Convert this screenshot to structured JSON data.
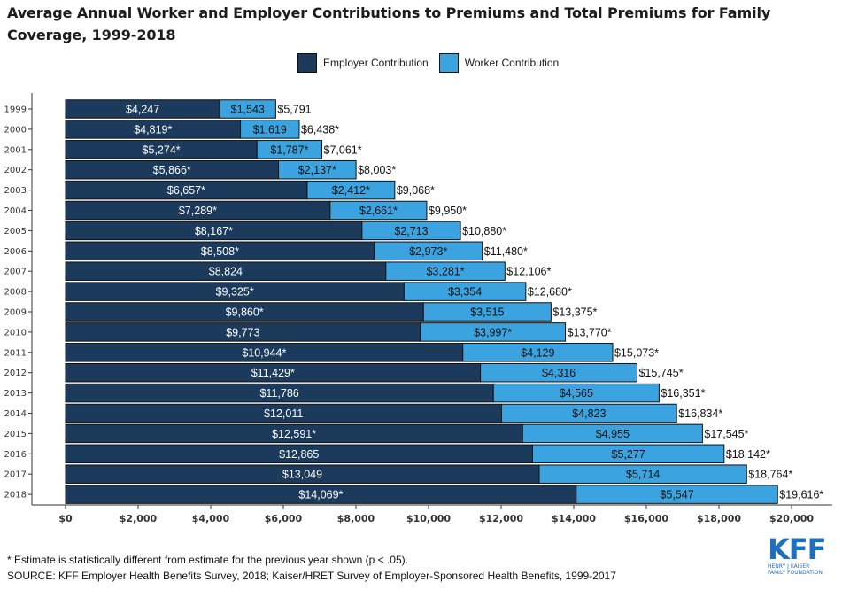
{
  "title": "Average Annual Worker and Employer Contributions to Premiums and Total Premiums for Family Coverage, 1999-2018",
  "legend": {
    "employer": "Employer Contribution",
    "worker": "Worker Contribution"
  },
  "colors": {
    "employer": "#1b3a5c",
    "worker": "#3ba3df",
    "border": "#111111"
  },
  "chart_data": {
    "type": "bar",
    "orientation": "horizontal",
    "stacked": true,
    "categories": [
      "1999",
      "2000",
      "2001",
      "2002",
      "2003",
      "2004",
      "2005",
      "2006",
      "2007",
      "2008",
      "2009",
      "2010",
      "2011",
      "2012",
      "2013",
      "2014",
      "2015",
      "2016",
      "2017",
      "2018"
    ],
    "series": [
      {
        "name": "Employer Contribution",
        "values": [
          4247,
          4819,
          5274,
          5866,
          6657,
          7289,
          8167,
          8508,
          8824,
          9325,
          9860,
          9773,
          10944,
          11429,
          11786,
          12011,
          12591,
          12865,
          13049,
          14069
        ],
        "labels": [
          "$4,247",
          "$4,819*",
          "$5,274*",
          "$5,866*",
          "$6,657*",
          "$7,289*",
          "$8,167*",
          "$8,508*",
          "$8,824",
          "$9,325*",
          "$9,860*",
          "$9,773",
          "$10,944*",
          "$11,429*",
          "$11,786",
          "$12,011",
          "$12,591*",
          "$12,865",
          "$13,049",
          "$14,069*"
        ]
      },
      {
        "name": "Worker Contribution",
        "values": [
          1543,
          1619,
          1787,
          2137,
          2412,
          2661,
          2713,
          2973,
          3281,
          3354,
          3515,
          3997,
          4129,
          4316,
          4565,
          4823,
          4955,
          5277,
          5714,
          5547
        ],
        "labels": [
          "$1,543",
          "$1,619",
          "$1,787*",
          "$2,137*",
          "$2,412*",
          "$2,661*",
          "$2,713",
          "$2,973*",
          "$3,281*",
          "$3,354",
          "$3,515",
          "$3,997*",
          "$4,129",
          "$4,316",
          "$4,565",
          "$4,823",
          "$4,955",
          "$5,277",
          "$5,714",
          "$5,547"
        ]
      }
    ],
    "totals": {
      "values": [
        5791,
        6438,
        7061,
        8003,
        9068,
        9950,
        10880,
        11480,
        12106,
        12680,
        13375,
        13770,
        15073,
        15745,
        16351,
        16834,
        17545,
        18142,
        18764,
        19616
      ],
      "labels": [
        "$5,791",
        "$6,438*",
        "$7,061*",
        "$8,003*",
        "$9,068*",
        "$9,950*",
        "$10,880*",
        "$11,480*",
        "$12,106*",
        "$12,680*",
        "$13,375*",
        "$13,770*",
        "$15,073*",
        "$15,745*",
        "$16,351*",
        "$16,834*",
        "$17,545*",
        "$18,142*",
        "$18,764*",
        "$19,616*"
      ]
    },
    "xlim": [
      0,
      20000
    ],
    "xticks": [
      0,
      2000,
      4000,
      6000,
      8000,
      10000,
      12000,
      14000,
      16000,
      18000,
      20000
    ],
    "xtick_labels": [
      "$0",
      "$2,000",
      "$4,000",
      "$6,000",
      "$8,000",
      "$10,000",
      "$12,000",
      "$14,000",
      "$16,000",
      "$18,000",
      "$20,000"
    ],
    "legend_position": "top",
    "grid": false
  },
  "footnote": "* Estimate is statistically different from estimate for the previous year shown (p < .05).",
  "source": "SOURCE: KFF Employer Health Benefits Survey, 2018; Kaiser/HRET Survey of Employer-Sponsored Health Benefits, 1999-2017",
  "logo": {
    "mark": "KFF",
    "line1": "HENRY J KAISER",
    "line2": "FAMILY FOUNDATION"
  }
}
